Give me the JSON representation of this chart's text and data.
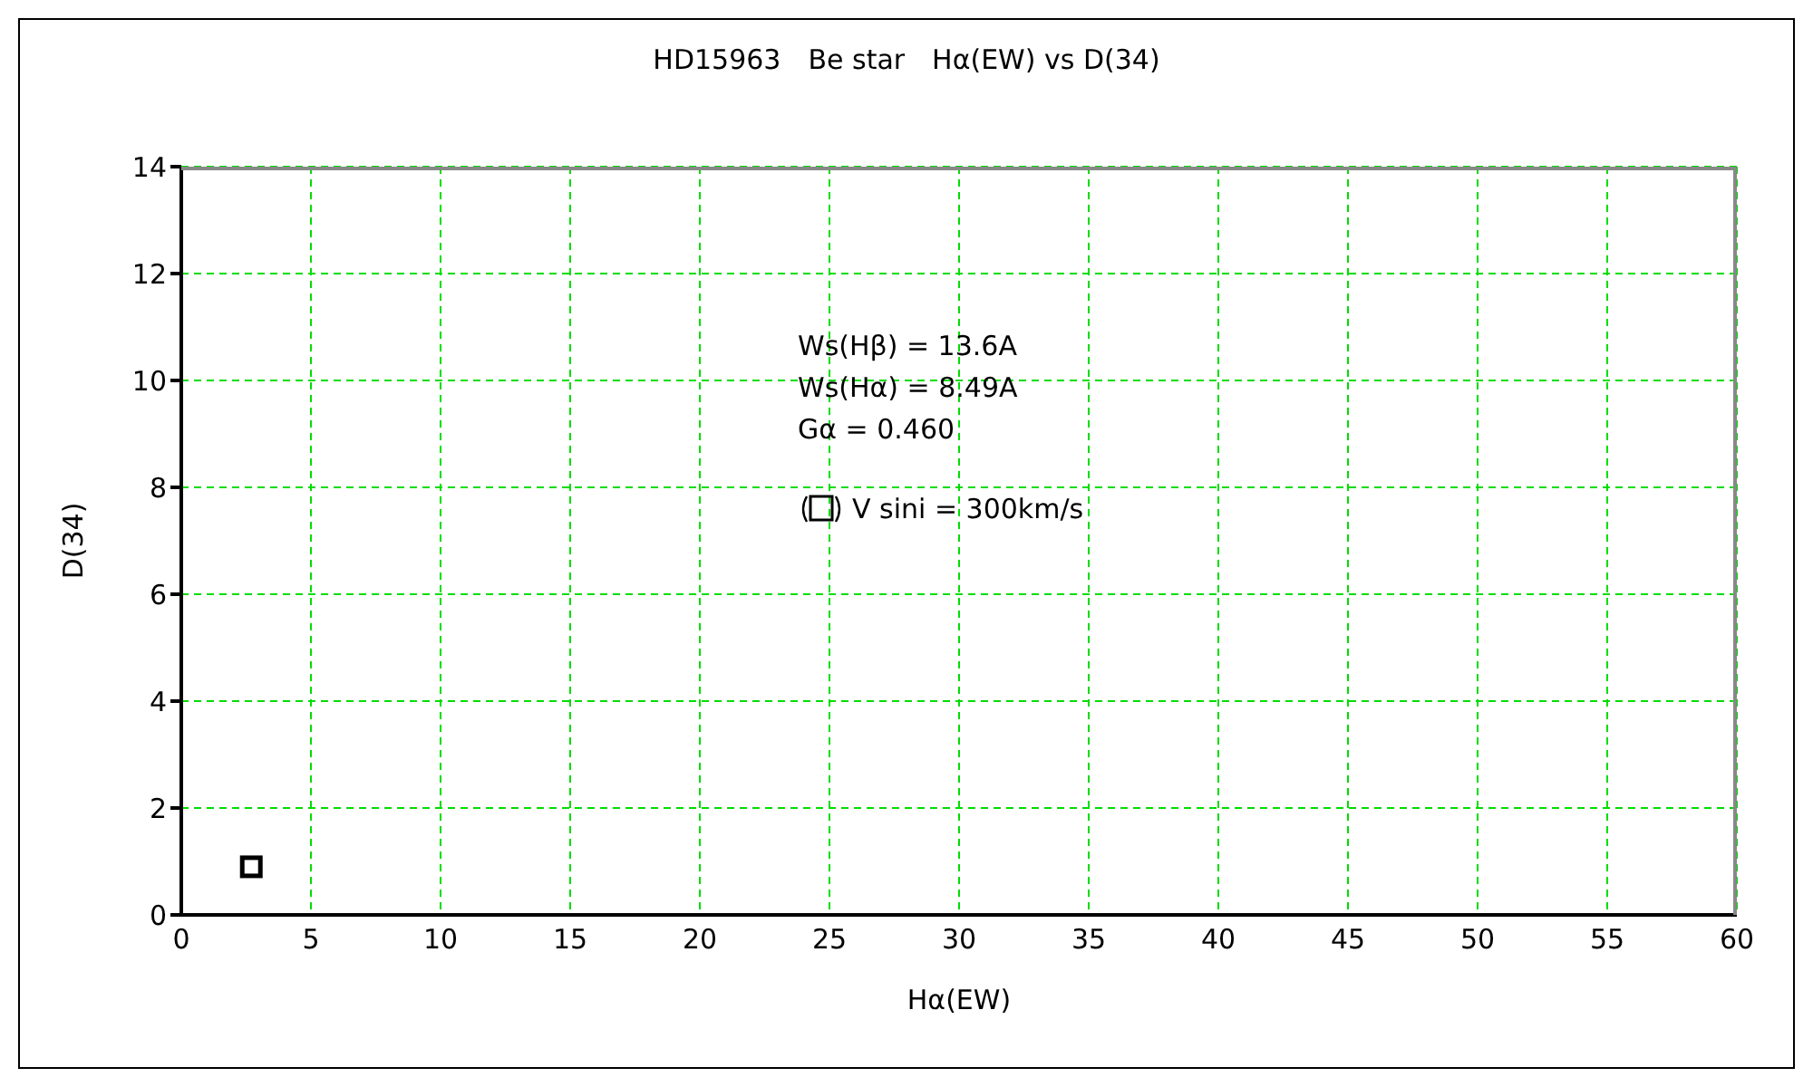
{
  "chart_data": {
    "type": "scatter",
    "title": "HD15963　Be star　Hα(EW) vs D(34)",
    "xlabel": "Hα(EW)",
    "ylabel": "D(34)",
    "annotations": [
      "Ws(Hβ) = 13.6A",
      "Ws(Hα) = 8.49A",
      "Gα = 0.460"
    ],
    "series": [
      {
        "name": "V sini = 300km/s",
        "color": "#000000",
        "x": [
          2.7
        ],
        "values": [
          0.9
        ]
      }
    ],
    "xlim": [
      0,
      60
    ],
    "xticks": [
      0,
      5,
      10,
      15,
      20,
      25,
      30,
      35,
      40,
      45,
      50,
      55,
      60
    ],
    "ylim": [
      0,
      14
    ],
    "yticks": [
      0,
      2,
      4,
      6,
      8,
      10,
      12,
      14
    ],
    "grid": true,
    "legend": "top",
    "marker": "square"
  }
}
